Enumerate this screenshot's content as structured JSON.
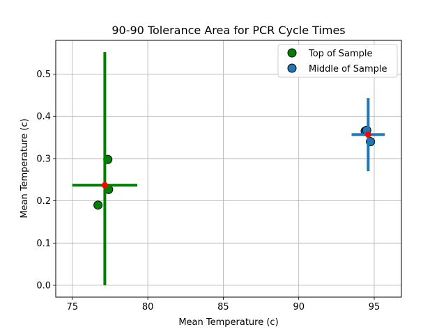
{
  "chart_data": {
    "type": "scatter",
    "title": "90-90 Tolerance Area for PCR Cycle Times",
    "xlabel": "Mean Temperature (c)",
    "ylabel": "Mean Temperature (c)",
    "xlim": [
      73.9,
      96.8
    ],
    "ylim": [
      -0.028,
      0.58
    ],
    "xticks": [
      75,
      80,
      85,
      90,
      95
    ],
    "yticks": [
      0.0,
      0.1,
      0.2,
      0.3,
      0.4,
      0.5
    ],
    "ytick_labels": [
      "0.0",
      "0.1",
      "0.2",
      "0.3",
      "0.4",
      "0.5"
    ],
    "grid": true,
    "legend_position": "top-right",
    "series": [
      {
        "name": "Top of Sample",
        "color": "#008000",
        "points": [
          {
            "x": 77.35,
            "y": 0.298
          },
          {
            "x": 77.4,
            "y": 0.227
          },
          {
            "x": 76.7,
            "y": 0.19
          }
        ],
        "mean": {
          "x": 77.15,
          "y": 0.237
        },
        "tolerance_x": [
          75.0,
          79.3
        ],
        "tolerance_y": [
          0.0,
          0.552
        ]
      },
      {
        "name": "Middle of Sample",
        "color": "#1f77b4",
        "points": [
          {
            "x": 94.4,
            "y": 0.365
          },
          {
            "x": 94.5,
            "y": 0.367
          },
          {
            "x": 94.75,
            "y": 0.34
          }
        ],
        "mean": {
          "x": 94.6,
          "y": 0.357
        },
        "tolerance_x": [
          93.5,
          95.7
        ],
        "tolerance_y": [
          0.27,
          0.443
        ]
      }
    ],
    "mean_marker_color": "#ff0000"
  }
}
